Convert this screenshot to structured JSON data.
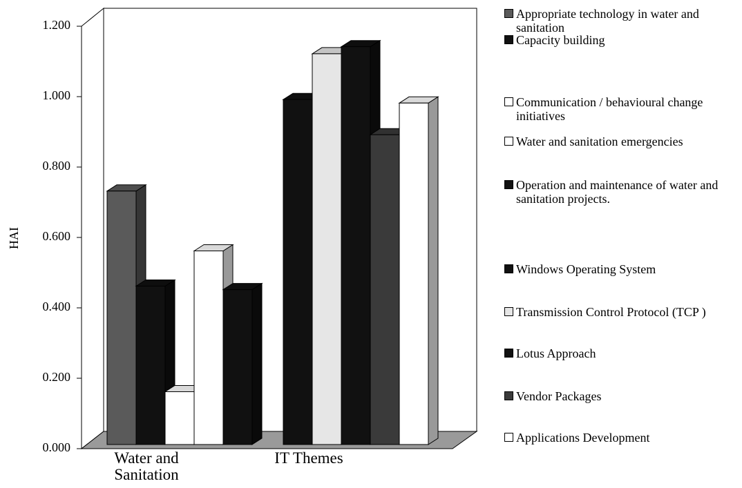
{
  "chart_data": {
    "type": "bar3d",
    "y_label": "HAI",
    "categories": [
      "Water and Sanitation",
      "IT Themes"
    ],
    "ylim": [
      0,
      1.2
    ],
    "yticks": [
      {
        "value": 0,
        "label": "0.000"
      },
      {
        "value": 0.2,
        "label": "0.200"
      },
      {
        "value": 0.4,
        "label": "0.400"
      },
      {
        "value": 0.6,
        "label": "0.600"
      },
      {
        "value": 0.8,
        "label": "0.800"
      },
      {
        "value": 1.0,
        "label": "1.000"
      },
      {
        "value": 1.2,
        "label": "1.200"
      }
    ],
    "series": [
      {
        "name": "Appropriate technology in water and sanitation",
        "color": "#5a5a5a",
        "values": [
          0.72,
          null
        ]
      },
      {
        "name": "Capacity building",
        "color": "#111111",
        "values": [
          0.45,
          null
        ]
      },
      {
        "name": "Communication / behavioural change initiatives",
        "color": "#ffffff",
        "values": [
          0.15,
          null
        ]
      },
      {
        "name": "Water and sanitation emergencies",
        "color": "#ffffff",
        "values": [
          0.55,
          null
        ]
      },
      {
        "name": "Operation and maintenance of water and sanitation projects.",
        "color": "#111111",
        "values": [
          0.44,
          null
        ]
      },
      {
        "name": "Windows Operating System",
        "color": "#111111",
        "values": [
          null,
          0.98
        ]
      },
      {
        "name": "Transmission Control Protocol (TCP )",
        "color": "#e6e6e6",
        "values": [
          null,
          1.11
        ]
      },
      {
        "name": "Lotus Approach",
        "color": "#111111",
        "values": [
          null,
          1.13
        ]
      },
      {
        "name": "Vendor Packages",
        "color": "#3a3a3a",
        "values": [
          null,
          0.88
        ]
      },
      {
        "name": "Applications Development",
        "color": "#ffffff",
        "values": [
          null,
          0.97
        ]
      }
    ]
  }
}
